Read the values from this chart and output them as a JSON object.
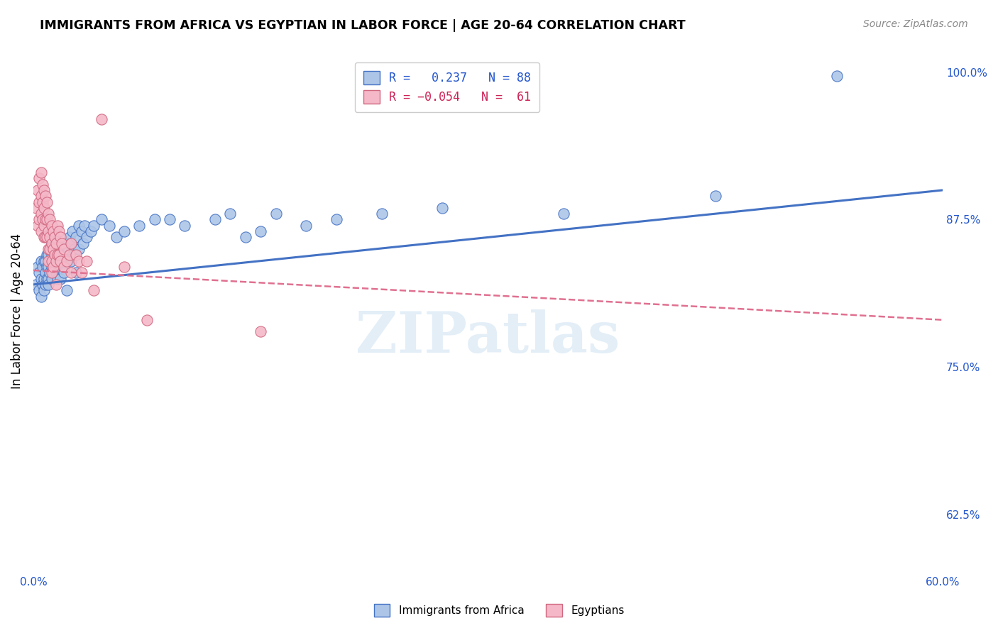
{
  "title": "IMMIGRANTS FROM AFRICA VS EGYPTIAN IN LABOR FORCE | AGE 20-64 CORRELATION CHART",
  "source": "Source: ZipAtlas.com",
  "ylabel": "In Labor Force | Age 20-64",
  "xlim": [
    0.0,
    0.6
  ],
  "ylim": [
    0.575,
    1.02
  ],
  "xticks": [
    0.0,
    0.1,
    0.2,
    0.3,
    0.4,
    0.5,
    0.6
  ],
  "xticklabels": [
    "0.0%",
    "",
    "",
    "",
    "",
    "",
    "60.0%"
  ],
  "yticks": [
    0.625,
    0.75,
    0.875,
    1.0
  ],
  "yticklabels": [
    "62.5%",
    "75.0%",
    "87.5%",
    "100.0%"
  ],
  "watermark": "ZIPatlas",
  "blue_color": "#adc6e8",
  "pink_color": "#f5b8c8",
  "blue_line_color": "#4472c4",
  "pink_line_color": "#e07090",
  "blue_scatter": [
    [
      0.002,
      0.82
    ],
    [
      0.003,
      0.835
    ],
    [
      0.004,
      0.83
    ],
    [
      0.004,
      0.815
    ],
    [
      0.005,
      0.84
    ],
    [
      0.005,
      0.825
    ],
    [
      0.005,
      0.81
    ],
    [
      0.006,
      0.835
    ],
    [
      0.006,
      0.82
    ],
    [
      0.007,
      0.84
    ],
    [
      0.007,
      0.825
    ],
    [
      0.007,
      0.815
    ],
    [
      0.008,
      0.84
    ],
    [
      0.008,
      0.83
    ],
    [
      0.008,
      0.82
    ],
    [
      0.009,
      0.845
    ],
    [
      0.009,
      0.835
    ],
    [
      0.009,
      0.825
    ],
    [
      0.01,
      0.845
    ],
    [
      0.01,
      0.835
    ],
    [
      0.01,
      0.825
    ],
    [
      0.01,
      0.82
    ],
    [
      0.011,
      0.85
    ],
    [
      0.011,
      0.84
    ],
    [
      0.011,
      0.83
    ],
    [
      0.012,
      0.855
    ],
    [
      0.012,
      0.845
    ],
    [
      0.012,
      0.835
    ],
    [
      0.012,
      0.825
    ],
    [
      0.013,
      0.85
    ],
    [
      0.013,
      0.84
    ],
    [
      0.013,
      0.83
    ],
    [
      0.014,
      0.855
    ],
    [
      0.014,
      0.845
    ],
    [
      0.014,
      0.835
    ],
    [
      0.015,
      0.855
    ],
    [
      0.015,
      0.845
    ],
    [
      0.015,
      0.83
    ],
    [
      0.016,
      0.85
    ],
    [
      0.016,
      0.84
    ],
    [
      0.016,
      0.825
    ],
    [
      0.017,
      0.845
    ],
    [
      0.017,
      0.835
    ],
    [
      0.018,
      0.855
    ],
    [
      0.018,
      0.84
    ],
    [
      0.018,
      0.825
    ],
    [
      0.019,
      0.85
    ],
    [
      0.02,
      0.845
    ],
    [
      0.02,
      0.83
    ],
    [
      0.021,
      0.855
    ],
    [
      0.022,
      0.845
    ],
    [
      0.022,
      0.815
    ],
    [
      0.023,
      0.85
    ],
    [
      0.024,
      0.86
    ],
    [
      0.025,
      0.855
    ],
    [
      0.025,
      0.84
    ],
    [
      0.026,
      0.865
    ],
    [
      0.027,
      0.85
    ],
    [
      0.028,
      0.86
    ],
    [
      0.028,
      0.83
    ],
    [
      0.03,
      0.87
    ],
    [
      0.03,
      0.85
    ],
    [
      0.032,
      0.865
    ],
    [
      0.033,
      0.855
    ],
    [
      0.034,
      0.87
    ],
    [
      0.035,
      0.86
    ],
    [
      0.038,
      0.865
    ],
    [
      0.04,
      0.87
    ],
    [
      0.045,
      0.875
    ],
    [
      0.05,
      0.87
    ],
    [
      0.055,
      0.86
    ],
    [
      0.06,
      0.865
    ],
    [
      0.07,
      0.87
    ],
    [
      0.08,
      0.875
    ],
    [
      0.09,
      0.875
    ],
    [
      0.1,
      0.87
    ],
    [
      0.12,
      0.875
    ],
    [
      0.13,
      0.88
    ],
    [
      0.14,
      0.86
    ],
    [
      0.15,
      0.865
    ],
    [
      0.16,
      0.88
    ],
    [
      0.18,
      0.87
    ],
    [
      0.2,
      0.875
    ],
    [
      0.23,
      0.88
    ],
    [
      0.27,
      0.885
    ],
    [
      0.35,
      0.88
    ],
    [
      0.45,
      0.895
    ],
    [
      0.53,
      0.997
    ]
  ],
  "pink_scatter": [
    [
      0.002,
      0.885
    ],
    [
      0.003,
      0.9
    ],
    [
      0.003,
      0.87
    ],
    [
      0.004,
      0.91
    ],
    [
      0.004,
      0.89
    ],
    [
      0.004,
      0.875
    ],
    [
      0.005,
      0.915
    ],
    [
      0.005,
      0.895
    ],
    [
      0.005,
      0.88
    ],
    [
      0.005,
      0.865
    ],
    [
      0.006,
      0.905
    ],
    [
      0.006,
      0.89
    ],
    [
      0.006,
      0.875
    ],
    [
      0.007,
      0.9
    ],
    [
      0.007,
      0.885
    ],
    [
      0.007,
      0.87
    ],
    [
      0.007,
      0.86
    ],
    [
      0.008,
      0.895
    ],
    [
      0.008,
      0.875
    ],
    [
      0.008,
      0.86
    ],
    [
      0.009,
      0.89
    ],
    [
      0.009,
      0.875
    ],
    [
      0.009,
      0.86
    ],
    [
      0.01,
      0.88
    ],
    [
      0.01,
      0.865
    ],
    [
      0.01,
      0.85
    ],
    [
      0.01,
      0.84
    ],
    [
      0.011,
      0.875
    ],
    [
      0.011,
      0.86
    ],
    [
      0.011,
      0.85
    ],
    [
      0.012,
      0.87
    ],
    [
      0.012,
      0.855
    ],
    [
      0.012,
      0.84
    ],
    [
      0.012,
      0.83
    ],
    [
      0.013,
      0.865
    ],
    [
      0.013,
      0.85
    ],
    [
      0.013,
      0.835
    ],
    [
      0.014,
      0.86
    ],
    [
      0.014,
      0.845
    ],
    [
      0.015,
      0.855
    ],
    [
      0.015,
      0.84
    ],
    [
      0.015,
      0.82
    ],
    [
      0.016,
      0.87
    ],
    [
      0.016,
      0.845
    ],
    [
      0.017,
      0.865
    ],
    [
      0.017,
      0.845
    ],
    [
      0.018,
      0.86
    ],
    [
      0.018,
      0.84
    ],
    [
      0.019,
      0.855
    ],
    [
      0.02,
      0.85
    ],
    [
      0.02,
      0.835
    ],
    [
      0.022,
      0.84
    ],
    [
      0.024,
      0.845
    ],
    [
      0.025,
      0.855
    ],
    [
      0.025,
      0.83
    ],
    [
      0.028,
      0.845
    ],
    [
      0.03,
      0.84
    ],
    [
      0.032,
      0.83
    ],
    [
      0.035,
      0.84
    ],
    [
      0.04,
      0.815
    ],
    [
      0.045,
      0.96
    ],
    [
      0.06,
      0.835
    ],
    [
      0.075,
      0.79
    ],
    [
      0.15,
      0.78
    ]
  ],
  "blue_line": {
    "x0": 0.0,
    "y0": 0.82,
    "x1": 0.6,
    "y1": 0.9
  },
  "pink_line": {
    "x0": 0.0,
    "y0": 0.832,
    "x1": 0.6,
    "y1": 0.79
  }
}
